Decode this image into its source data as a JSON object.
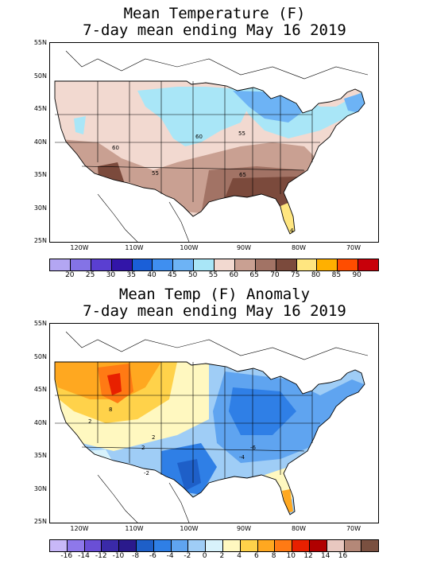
{
  "top": {
    "title_line1": "Mean Temperature (F)",
    "title_line2": "7-day mean ending May 16 2019",
    "lat_labels": [
      "55N",
      "50N",
      "45N",
      "40N",
      "35N",
      "30N",
      "25N"
    ],
    "lon_labels": [
      "120W",
      "110W",
      "100W",
      "90W",
      "80W",
      "70W"
    ],
    "contour_labels": [
      "60",
      "60",
      "55",
      "55",
      "65",
      "4"
    ],
    "colorbar": {
      "colors": [
        "#b3a6f2",
        "#8473e6",
        "#5a3fd1",
        "#3215a8",
        "#1a5fd8",
        "#3f8ff0",
        "#6db3f5",
        "#a9e6f7",
        "#f2d9d0",
        "#c9a092",
        "#a27365",
        "#7b4a3c",
        "#ffe680",
        "#ffb000",
        "#ff4d00",
        "#c8000a"
      ],
      "labels": [
        "20",
        "25",
        "30",
        "35",
        "40",
        "45",
        "50",
        "55",
        "60",
        "65",
        "70",
        "75",
        "80",
        "85",
        "90"
      ]
    }
  },
  "bottom": {
    "title_line1": "Mean Temp (F) Anomaly",
    "title_line2": "7-day mean ending May 16 2019",
    "lat_labels": [
      "55N",
      "50N",
      "45N",
      "40N",
      "35N",
      "30N",
      "25N"
    ],
    "lon_labels": [
      "120W",
      "110W",
      "100W",
      "90W",
      "80W",
      "70W"
    ],
    "contour_labels": [
      "8",
      "2",
      "2",
      "2",
      "-2",
      "-6",
      "-4"
    ],
    "colorbar": {
      "colors": [
        "#c8b8f8",
        "#8e78ea",
        "#6a4fd6",
        "#3a2aa8",
        "#2a1a8c",
        "#1e5fc8",
        "#2f7fe6",
        "#5fa4f0",
        "#9fcdf6",
        "#d8f2fb",
        "#fff8c0",
        "#ffd24a",
        "#ffa820",
        "#ff7a14",
        "#e82000",
        "#b00000",
        "#e8c8c0",
        "#b48878",
        "#7a5040"
      ],
      "labels": [
        "-16",
        "-14",
        "-12",
        "-10",
        "-8",
        "-6",
        "-4",
        "-2",
        "0",
        "2",
        "4",
        "6",
        "8",
        "10",
        "12",
        "14",
        "16"
      ]
    }
  }
}
